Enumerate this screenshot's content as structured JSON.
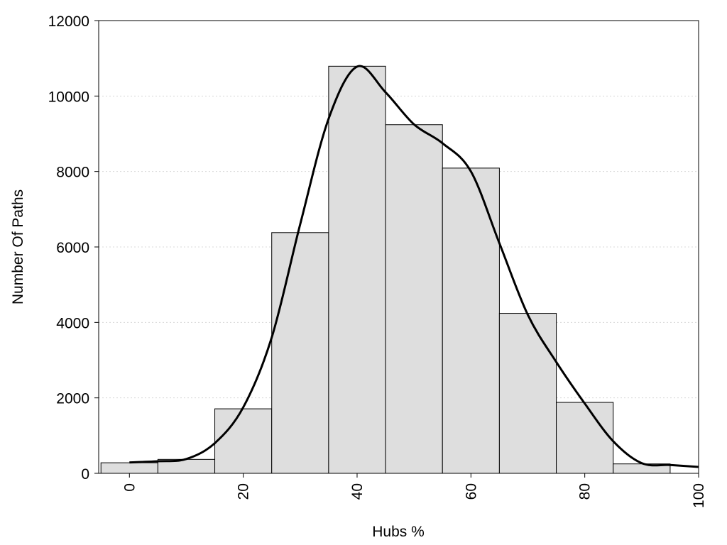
{
  "chart_data": {
    "type": "bar",
    "title": "",
    "xlabel": "Hubs %",
    "ylabel": "Number Of Paths",
    "xlim": [
      -5.4,
      100
    ],
    "ylim": [
      0,
      12000
    ],
    "x_ticks": [
      0,
      20,
      40,
      60,
      80,
      100
    ],
    "y_ticks": [
      0,
      2000,
      4000,
      6000,
      8000,
      10000,
      12000
    ],
    "grid": "horizontal dotted",
    "bin_width": 10,
    "bins": [
      {
        "x": 0,
        "value": 280
      },
      {
        "x": 10,
        "value": 370
      },
      {
        "x": 20,
        "value": 1710
      },
      {
        "x": 30,
        "value": 6380
      },
      {
        "x": 40,
        "value": 10790
      },
      {
        "x": 50,
        "value": 9240
      },
      {
        "x": 60,
        "value": 8090
      },
      {
        "x": 70,
        "value": 4240
      },
      {
        "x": 80,
        "value": 1880
      },
      {
        "x": 90,
        "value": 250
      }
    ],
    "density_curve": [
      {
        "x": 0,
        "y": 290
      },
      {
        "x": 5,
        "y": 320
      },
      {
        "x": 10,
        "y": 380
      },
      {
        "x": 15,
        "y": 800
      },
      {
        "x": 20,
        "y": 1750
      },
      {
        "x": 25,
        "y": 3600
      },
      {
        "x": 30,
        "y": 6600
      },
      {
        "x": 35,
        "y": 9400
      },
      {
        "x": 40,
        "y": 10780
      },
      {
        "x": 45,
        "y": 10100
      },
      {
        "x": 50,
        "y": 9250
      },
      {
        "x": 55,
        "y": 8750
      },
      {
        "x": 60,
        "y": 8000
      },
      {
        "x": 65,
        "y": 6100
      },
      {
        "x": 70,
        "y": 4200
      },
      {
        "x": 75,
        "y": 2950
      },
      {
        "x": 80,
        "y": 1850
      },
      {
        "x": 85,
        "y": 850
      },
      {
        "x": 90,
        "y": 270
      },
      {
        "x": 95,
        "y": 220
      },
      {
        "x": 100,
        "y": 170
      }
    ],
    "colors": {
      "bar_fill": "#dedede",
      "bar_edge": "#000000",
      "curve": "#000000"
    }
  }
}
